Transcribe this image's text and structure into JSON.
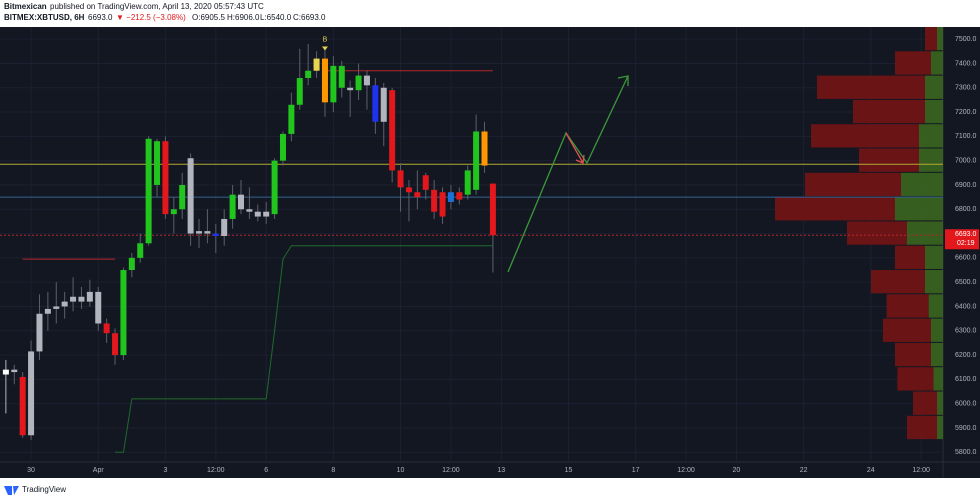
{
  "header": {
    "author": "Bitmexican",
    "published": "published on TradingView.com, April 13, 2020 05:57:43 UTC",
    "symbol": "BITMEX:XBTUSD, 6H",
    "price": "6693.0",
    "change": "▼ −212.5 (−3.08%)",
    "ohlc": [
      "O:6905.5",
      "H:6906.0",
      "L:6540.0",
      "C:6693.0"
    ]
  },
  "footer": {
    "brand": "TradingView"
  },
  "chart_data": {
    "type": "candlestick",
    "x": [
      -3,
      -2,
      -1,
      0,
      1,
      2,
      3,
      4,
      5,
      6,
      7,
      8,
      9,
      10,
      11,
      12,
      13,
      14,
      15,
      16,
      17,
      18,
      19,
      20,
      21,
      22,
      23,
      24,
      25,
      26,
      27,
      28,
      29,
      30,
      31,
      32,
      33,
      34,
      35,
      36,
      37,
      38,
      39,
      40,
      41,
      42,
      43,
      44,
      45,
      46,
      47,
      48,
      49,
      50,
      51,
      52,
      53,
      54,
      55
    ],
    "open": [
      6120,
      6140,
      6110,
      5870,
      6215,
      6370,
      6390,
      6400,
      6420,
      6440,
      6420,
      6460,
      6330,
      6290,
      6200,
      6550,
      6600,
      6660,
      6900,
      7080,
      6780,
      6800,
      7010,
      6700,
      6710,
      6700,
      6690,
      6760,
      6860,
      6800,
      6790,
      6770,
      6780,
      7000,
      7110,
      7230,
      7340,
      7370,
      7420,
      7240,
      7390,
      7300,
      7290,
      7350,
      7310,
      7160,
      7290,
      6960,
      6890,
      6870,
      6940,
      6880,
      6870,
      6830,
      6870,
      6860,
      6880,
      7120,
      6905.5
    ],
    "high": [
      6180,
      6160,
      6130,
      6260,
      6450,
      6460,
      6500,
      6460,
      6520,
      6480,
      6510,
      6480,
      6350,
      6310,
      6560,
      6620,
      6700,
      7100,
      7090,
      7100,
      6850,
      6950,
      7030,
      6760,
      6800,
      6740,
      6800,
      6900,
      6920,
      6890,
      6820,
      6830,
      7010,
      7120,
      7280,
      7460,
      7480,
      7450,
      7470,
      7430,
      7410,
      7330,
      7400,
      7370,
      7340,
      7320,
      7300,
      6990,
      6920,
      6960,
      6950,
      6920,
      6890,
      6900,
      6890,
      6980,
      7190,
      7160,
      6906
    ],
    "low": [
      5960,
      6080,
      5860,
      5850,
      6180,
      6300,
      6330,
      6350,
      6380,
      6390,
      6400,
      6300,
      6250,
      6160,
      6180,
      6520,
      6580,
      6650,
      6850,
      6760,
      6700,
      6760,
      6650,
      6640,
      6660,
      6620,
      6650,
      6720,
      6780,
      6760,
      6750,
      6740,
      6760,
      6980,
      7080,
      7210,
      7310,
      7340,
      7180,
      7200,
      7260,
      7180,
      7250,
      7210,
      7110,
      7060,
      6910,
      6790,
      6750,
      6800,
      6840,
      6760,
      6740,
      6800,
      6820,
      6840,
      6860,
      6950,
      6540
    ],
    "close": [
      6140,
      6130,
      5870,
      6215,
      6370,
      6390,
      6400,
      6420,
      6440,
      6420,
      6460,
      6330,
      6290,
      6200,
      6550,
      6600,
      6660,
      7090,
      7080,
      6780,
      6800,
      6900,
      6700,
      6710,
      6700,
      6690,
      6760,
      6860,
      6800,
      6790,
      6770,
      6790,
      7000,
      7110,
      7230,
      7340,
      7370,
      7420,
      7240,
      7390,
      7300,
      7290,
      7350,
      7310,
      7160,
      7300,
      6960,
      6890,
      6870,
      6850,
      6880,
      6790,
      6770,
      6870,
      6840,
      6960,
      7120,
      6980,
      6693
    ],
    "colors": [
      "#ffffff",
      "#b2b5be",
      "#e3181c",
      "#b2b5be",
      "#b2b5be",
      "#b2b5be",
      "#b2b5be",
      "#b2b5be",
      "#b2b5be",
      "#b2b5be",
      "#b2b5be",
      "#b2b5be",
      "#e3181c",
      "#e3181c",
      "#22c41e",
      "#22c41e",
      "#22c41e",
      "#22c41e",
      "#22c41e",
      "#e3181c",
      "#22c41e",
      "#22c41e",
      "#b2b5be",
      "#b2b5be",
      "#b2b5be",
      "#1e32f0",
      "#b2b5be",
      "#22c41e",
      "#b2b5be",
      "#b2b5be",
      "#b2b5be",
      "#b2b5be",
      "#22c41e",
      "#22c41e",
      "#22c41e",
      "#22c41e",
      "#22c41e",
      "#e8d44d",
      "#ff9800",
      "#22c41e",
      "#22c41e",
      "#b2b5be",
      "#22c41e",
      "#b2b5be",
      "#1e32f0",
      "#b2b5be",
      "#e3181c",
      "#e3181c",
      "#e3181c",
      "#e3181c",
      "#e3181c",
      "#e3181c",
      "#e3181c",
      "#1e6fd6",
      "#e3181c",
      "#22c41e",
      "#22c41e",
      "#ff9800",
      "#e3181c"
    ],
    "hlines": [
      {
        "value": 6985,
        "color": "#b5a832"
      },
      {
        "value": 6850,
        "color": "#35628f"
      },
      {
        "value": 6693,
        "color": "#b3262a"
      }
    ],
    "segments": [
      {
        "value": 7370,
        "x": [
          35,
          55
        ],
        "color": "#b3262a"
      }
    ],
    "stops": [
      {
        "color": "#b3262a",
        "x": [
          -1,
          10
        ],
        "values": [
          6595,
          6595
        ]
      },
      {
        "color": "#1f6b2a",
        "x": [
          10,
          11,
          12,
          28,
          29,
          30,
          31,
          55
        ],
        "values": [
          5800,
          5800,
          6020,
          6020,
          6300,
          6595,
          6650,
          6650
        ]
      }
    ],
    "annotation": {
      "text": "B",
      "x": 35,
      "y": 7470
    },
    "volume_profile": {
      "levels": [
        5900,
        6000,
        6100,
        6200,
        6300,
        6400,
        6500,
        6600,
        6700,
        6800,
        6900,
        7000,
        7100,
        7200,
        7300,
        7400,
        7500
      ],
      "up": [
        5,
        5,
        8,
        10,
        10,
        12,
        15,
        15,
        30,
        40,
        35,
        20,
        20,
        15,
        15,
        10,
        5
      ],
      "down": [
        25,
        20,
        30,
        30,
        40,
        35,
        45,
        25,
        50,
        100,
        80,
        50,
        90,
        60,
        90,
        30,
        10
      ]
    },
    "last_price": {
      "value": 6693,
      "label": "6693.0"
    },
    "countdown": "02:19",
    "xlim": [
      -3.7,
      108.6
    ],
    "xticks": [
      {
        "value": 0,
        "label": "30"
      },
      {
        "value": 8,
        "label": "Apr"
      },
      {
        "value": 16,
        "label": "3"
      },
      {
        "value": 22,
        "label": "12:00"
      },
      {
        "value": 28,
        "label": "6"
      },
      {
        "value": 36,
        "label": "8"
      },
      {
        "value": 44,
        "label": "10"
      },
      {
        "value": 50,
        "label": "12:00"
      },
      {
        "value": 56,
        "label": "13"
      },
      {
        "value": 64,
        "label": "15"
      },
      {
        "value": 72,
        "label": "17"
      },
      {
        "value": 78,
        "label": "12:00"
      },
      {
        "value": 84,
        "label": "20"
      },
      {
        "value": 92,
        "label": "22"
      },
      {
        "value": 100,
        "label": "24"
      },
      {
        "value": 106,
        "label": "12:00"
      }
    ],
    "ylim": [
      5760,
      7550
    ],
    "yticks": [
      {
        "value": 5800,
        "label": "5800.0"
      },
      {
        "value": 5900,
        "label": "5900.0"
      },
      {
        "value": 6000,
        "label": "6000.0"
      },
      {
        "value": 6100,
        "label": "6100.0"
      },
      {
        "value": 6200,
        "label": "6200.0"
      },
      {
        "value": 6300,
        "label": "6300.0"
      },
      {
        "value": 6400,
        "label": "6400.0"
      },
      {
        "value": 6500,
        "label": "6500.0"
      },
      {
        "value": 6600,
        "label": "6600.0"
      },
      {
        "value": 6700,
        "label": "6700.0"
      },
      {
        "value": 6800,
        "label": "6800.0"
      },
      {
        "value": 6900,
        "label": "6900.0"
      },
      {
        "value": 7000,
        "label": "7000.0"
      },
      {
        "value": 7100,
        "label": "7100.0"
      },
      {
        "value": 7200,
        "label": "7200.0"
      },
      {
        "value": 7300,
        "label": "7300.0"
      },
      {
        "value": 7400,
        "label": "7400.0"
      },
      {
        "value": 7500,
        "label": "7500.0"
      }
    ],
    "grid": true
  }
}
